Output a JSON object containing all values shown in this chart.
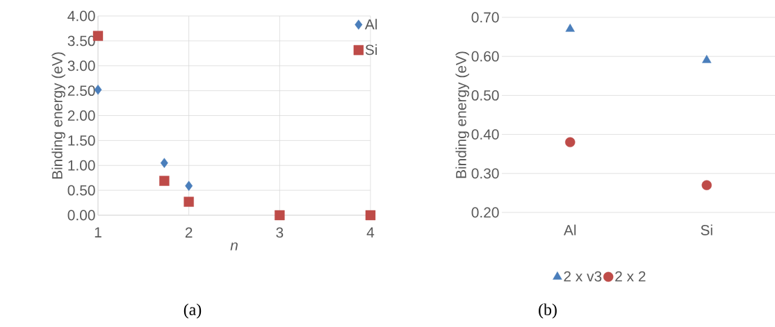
{
  "chart_data": [
    {
      "type": "scatter",
      "xlabel": "n",
      "ylabel": "Binding energy (eV)",
      "xlim": [
        1,
        4
      ],
      "xticks": [
        1,
        2,
        3,
        4
      ],
      "ylim": [
        0,
        4
      ],
      "yticks": [
        {
          "value": 0,
          "label": "0.00"
        },
        {
          "value": 0.5,
          "label": "0.50"
        },
        {
          "value": 1,
          "label": "1.00"
        },
        {
          "value": 1.5,
          "label": "1.50"
        },
        {
          "value": 2,
          "label": "2.00"
        },
        {
          "value": 2.5,
          "label": "2.50"
        },
        {
          "value": 3,
          "label": "3.00"
        },
        {
          "value": 3.5,
          "label": "3.50"
        },
        {
          "value": 4,
          "label": "4.00"
        }
      ],
      "grid": true,
      "legend": "top right",
      "annotations": [
        "(a)"
      ],
      "series": [
        {
          "name": "Al",
          "color": "#4a7ebb",
          "marker": "diamond",
          "x": [
            1,
            1.73,
            2
          ],
          "values": [
            2.52,
            1.05,
            0.59
          ]
        },
        {
          "name": "Si",
          "color": "#be4b48",
          "marker": "square",
          "x": [
            1,
            1.73,
            2,
            3,
            4
          ],
          "values": [
            3.6,
            0.69,
            0.27,
            0,
            0
          ]
        }
      ]
    },
    {
      "type": "scatter",
      "ylabel": "Binding energy (eV)",
      "categories": [
        "Al",
        "Si"
      ],
      "ylim": [
        0.2,
        0.7
      ],
      "yticks": [
        {
          "value": 0.2,
          "label": "0.20"
        },
        {
          "value": 0.3,
          "label": "0.30"
        },
        {
          "value": 0.4,
          "label": "0.40"
        },
        {
          "value": 0.5,
          "label": "0.50"
        },
        {
          "value": 0.6,
          "label": "0.60"
        },
        {
          "value": 0.7,
          "label": "0.70"
        }
      ],
      "grid": "y",
      "legend": "bottom",
      "annotations": [
        "(b)"
      ],
      "series": [
        {
          "name": "2 x v3",
          "color": "#4a7ebb",
          "marker": "triangle",
          "values": [
            0.67,
            0.59
          ]
        },
        {
          "name": "2 x 2",
          "color": "#be4b48",
          "marker": "circle",
          "values": [
            0.38,
            0.27
          ]
        }
      ]
    }
  ]
}
